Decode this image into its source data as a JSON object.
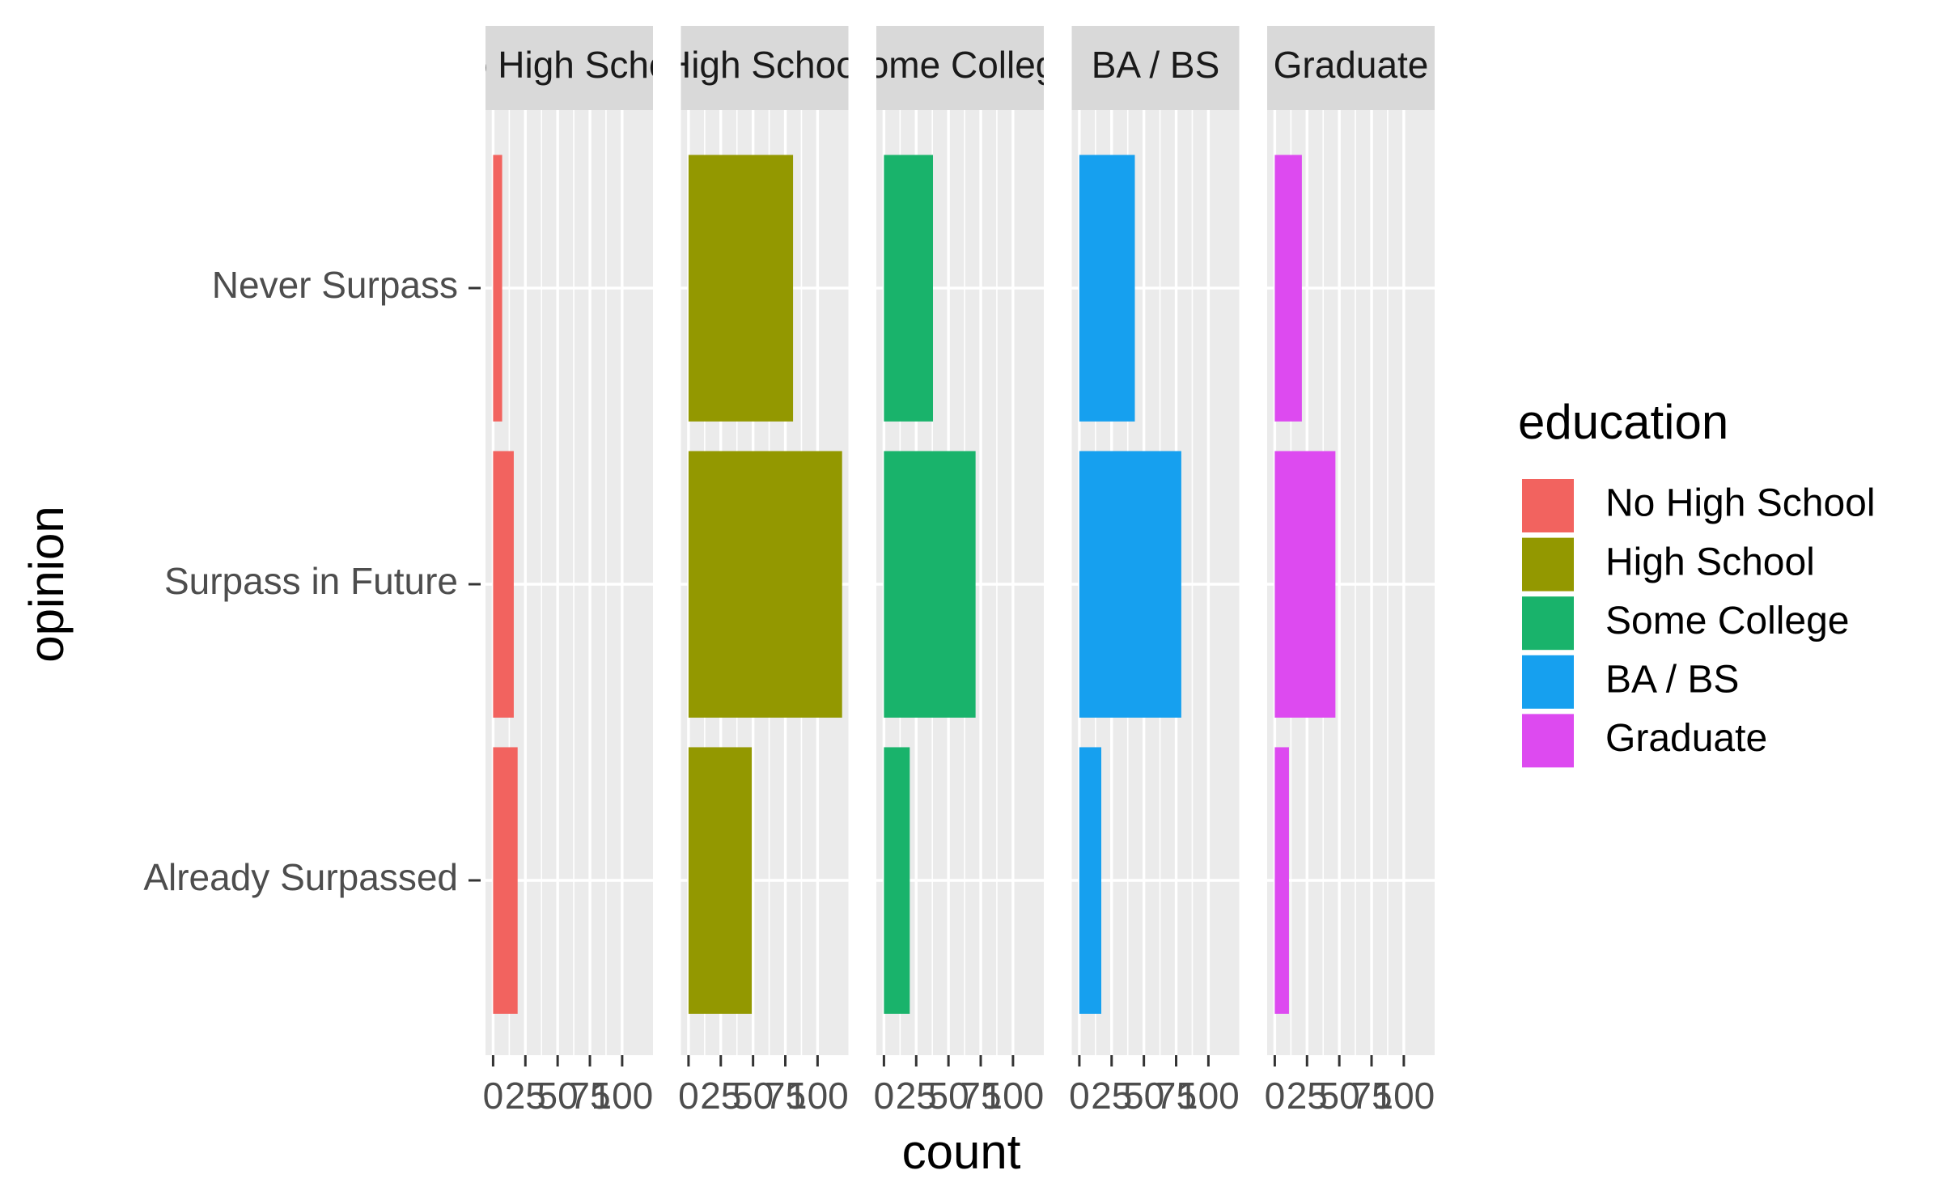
{
  "chart_data": {
    "type": "bar",
    "orientation": "horizontal",
    "facet_by": "series",
    "y_label": "opinion",
    "x_label": "count",
    "legend_title": "education",
    "categories": [
      "Never Surpass",
      "Surpass in Future",
      "Already Surpassed"
    ],
    "series": [
      {
        "name": "No High School",
        "color": "#f2635f",
        "values": [
          7,
          16,
          19
        ]
      },
      {
        "name": "High School",
        "color": "#939800",
        "values": [
          81,
          119,
          49
        ]
      },
      {
        "name": "Some College",
        "color": "#19b36b",
        "values": [
          38,
          71,
          20
        ]
      },
      {
        "name": "BA / BS",
        "color": "#16a0ef",
        "values": [
          43,
          79,
          17
        ]
      },
      {
        "name": "Graduate",
        "color": "#dd4af0",
        "values": [
          21,
          47,
          11
        ]
      }
    ],
    "xlim": [
      -5.9,
      123.9
    ],
    "xticks": [
      0,
      25,
      50,
      75,
      100
    ],
    "grid": true
  }
}
